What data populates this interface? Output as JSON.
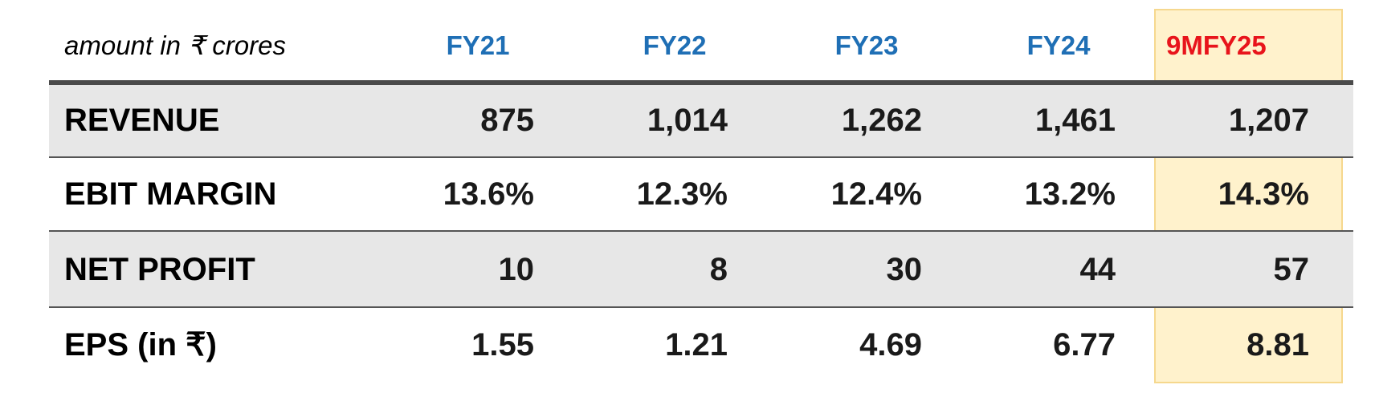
{
  "header": {
    "unit_label": "amount in ₹ crores",
    "columns": [
      "FY21",
      "FY22",
      "FY23",
      "FY24",
      "9MFY25"
    ]
  },
  "table": {
    "rows": [
      {
        "label": "REVENUE",
        "cells": [
          "875",
          "1,014",
          "1,262",
          "1,461",
          "1,207"
        ]
      },
      {
        "label": "EBIT MARGIN",
        "cells": [
          "13.6%",
          "12.3%",
          "12.4%",
          "13.2%",
          "14.3%"
        ]
      },
      {
        "label": "NET PROFIT",
        "cells": [
          "10",
          "8",
          "30",
          "44",
          "57"
        ]
      },
      {
        "label": "EPS (in ₹)",
        "cells": [
          "1.55",
          "1.21",
          "4.69",
          "6.77",
          "8.81"
        ]
      }
    ]
  }
}
